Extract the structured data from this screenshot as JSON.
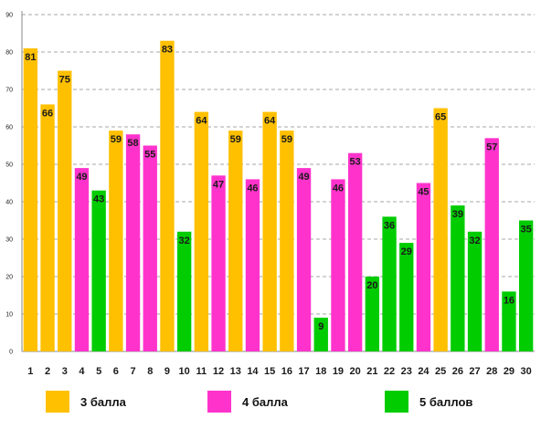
{
  "chart_data": {
    "type": "bar",
    "title": "",
    "xlabel": "",
    "ylabel": "",
    "ylim": [
      0,
      90
    ],
    "yticks": [
      0,
      10,
      20,
      30,
      40,
      50,
      60,
      70,
      80,
      90
    ],
    "grid": true,
    "categories": [
      "1",
      "2",
      "3",
      "4",
      "5",
      "6",
      "7",
      "8",
      "9",
      "10",
      "11",
      "12",
      "13",
      "14",
      "15",
      "16",
      "17",
      "18",
      "19",
      "20",
      "21",
      "22",
      "23",
      "24",
      "25",
      "26",
      "27",
      "28",
      "29",
      "30"
    ],
    "values": [
      81,
      66,
      75,
      49,
      43,
      59,
      58,
      55,
      83,
      32,
      64,
      47,
      59,
      46,
      64,
      59,
      49,
      9,
      46,
      53,
      20,
      36,
      29,
      45,
      65,
      39,
      32,
      57,
      16,
      35
    ],
    "groups": [
      3,
      3,
      3,
      4,
      5,
      3,
      4,
      4,
      3,
      5,
      3,
      4,
      3,
      4,
      3,
      3,
      4,
      5,
      4,
      4,
      5,
      5,
      5,
      4,
      3,
      5,
      5,
      4,
      5,
      5
    ],
    "legend_position": "bottom",
    "legend": [
      {
        "group": 3,
        "label": "3 балла",
        "color": "#FFC000"
      },
      {
        "group": 4,
        "label": "4 балла",
        "color": "#FF33CC"
      },
      {
        "group": 5,
        "label": "5 баллов",
        "color": "#00CC00"
      }
    ]
  }
}
